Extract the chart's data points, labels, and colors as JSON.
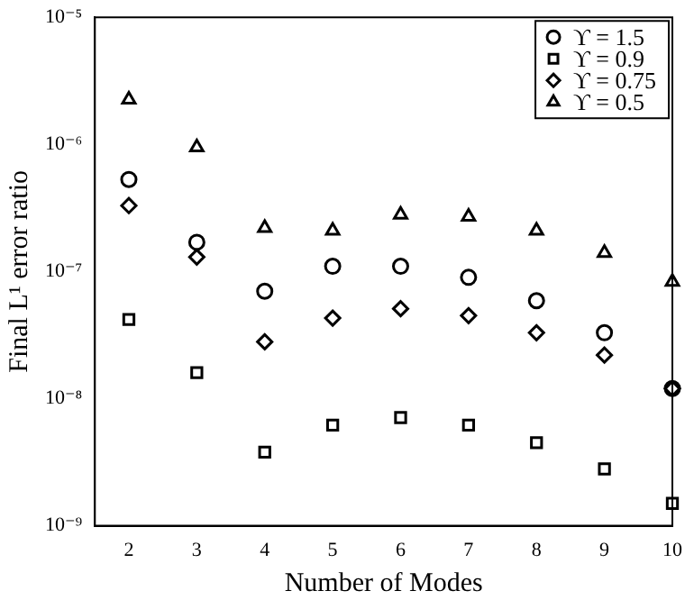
{
  "chart_data": {
    "type": "scatter",
    "xlabel": "Number of Modes",
    "ylabel": "Final L¹ error ratio",
    "log": "y",
    "grid": false,
    "legend": "top right",
    "x": [
      2,
      3,
      4,
      5,
      6,
      7,
      8,
      9,
      10
    ],
    "xlim": [
      1.5,
      10
    ],
    "xticks": [
      2,
      3,
      4,
      5,
      6,
      7,
      8,
      9,
      10
    ],
    "ylim": [
      1e-09,
      1e-05
    ],
    "yticks": [
      {
        "value": 1e-09,
        "label": "10⁻⁹"
      },
      {
        "value": 1e-08,
        "label": "10⁻⁸"
      },
      {
        "value": 1e-07,
        "label": "10⁻⁷"
      },
      {
        "value": 1e-06,
        "label": "10⁻⁶"
      },
      {
        "value": 1e-05,
        "label": "10⁻⁵"
      }
    ],
    "series": [
      {
        "name": "ϒ = 1.5",
        "color": "#000000",
        "marker": "circle",
        "values": [
          5.3e-07,
          1.7e-07,
          7e-08,
          1.1e-07,
          1.1e-07,
          9e-08,
          5.9e-08,
          3.3e-08,
          1.2e-08
        ]
      },
      {
        "name": "ϒ = 0.9",
        "color": "#000000",
        "marker": "square",
        "values": [
          4.2e-08,
          1.6e-08,
          3.8e-09,
          6.2e-09,
          7.1e-09,
          6.2e-09,
          4.5e-09,
          2.8e-09,
          1.5e-09
        ]
      },
      {
        "name": "ϒ = 0.75",
        "color": "#000000",
        "marker": "diamond",
        "values": [
          3.3e-07,
          1.3e-07,
          2.8e-08,
          4.3e-08,
          5.1e-08,
          4.5e-08,
          3.3e-08,
          2.2e-08,
          1.2e-08
        ]
      },
      {
        "name": "ϒ = 0.5",
        "color": "#000000",
        "marker": "triangle",
        "values": [
          2.25e-06,
          9.5e-07,
          2.2e-07,
          2.1e-07,
          2.8e-07,
          2.7e-07,
          2.1e-07,
          1.4e-07,
          8.3e-08
        ]
      }
    ]
  }
}
